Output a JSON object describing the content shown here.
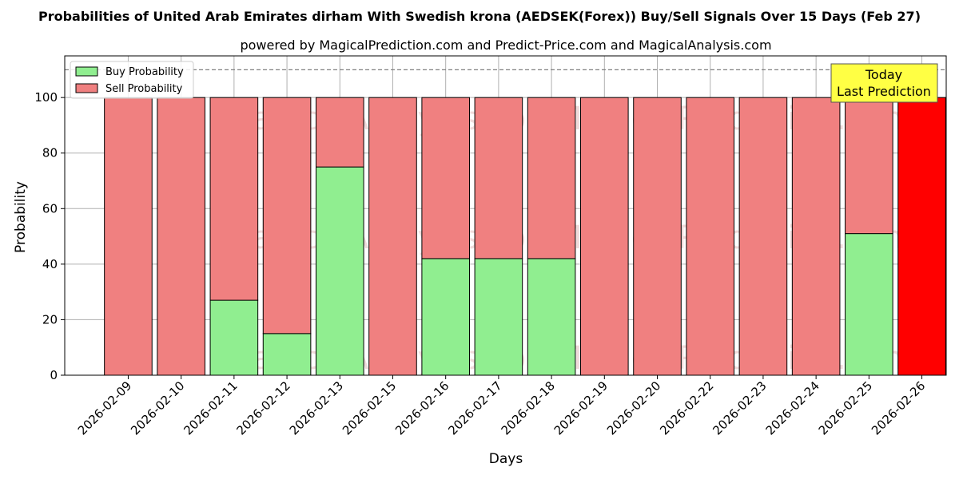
{
  "chart_data": {
    "type": "bar",
    "stacked": true,
    "title": "Probabilities of United Arab Emirates dirham With Swedish krona (AEDSEK(Forex)) Buy/Sell Signals Over 15 Days (Feb 27)",
    "subtitle": "powered by MagicalPrediction.com and Predict-Price.com and MagicalAnalysis.com",
    "xlabel": "Days",
    "ylabel": "Probability",
    "ylim": [
      0,
      115
    ],
    "yticks": [
      0,
      20,
      40,
      60,
      80,
      100
    ],
    "grid": true,
    "legend_position": "top-left",
    "reference_line": 110,
    "categories": [
      "2026-02-09",
      "2026-02-10",
      "2026-02-11",
      "2026-02-12",
      "2026-02-13",
      "2026-02-15",
      "2026-02-16",
      "2026-02-17",
      "2026-02-18",
      "2026-02-19",
      "2026-02-20",
      "2026-02-22",
      "2026-02-23",
      "2026-02-24",
      "2026-02-25",
      "2026-02-26"
    ],
    "series": [
      {
        "name": "Buy Probability",
        "color": "#90ee90",
        "values": [
          0,
          0,
          27,
          15,
          75,
          0,
          42,
          42,
          42,
          0,
          0,
          0,
          0,
          0,
          51,
          0
        ]
      },
      {
        "name": "Sell Probability",
        "color": "#f08080",
        "values": [
          100,
          100,
          73,
          85,
          25,
          100,
          58,
          58,
          58,
          100,
          100,
          100,
          100,
          100,
          49,
          100
        ]
      }
    ],
    "highlight": {
      "index": 15,
      "color": "#ff0000"
    },
    "annotation": {
      "lines": [
        "Today",
        "Last Prediction"
      ],
      "background": "#ffff44"
    },
    "watermark": {
      "texts": [
        "MagicalAnalysis.com",
        "MagicalPrediction.com"
      ]
    }
  }
}
